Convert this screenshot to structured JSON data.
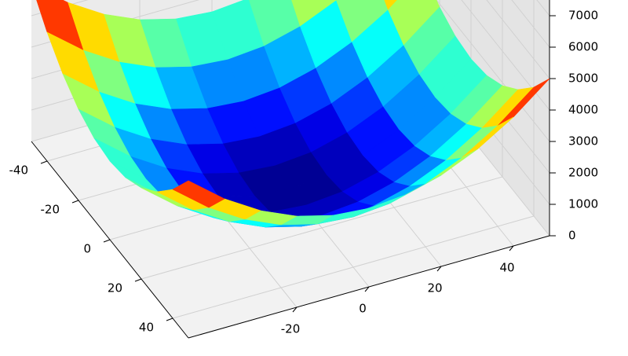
{
  "chart_data": {
    "type": "surface",
    "x": [
      -50,
      -40,
      -30,
      -20,
      -10,
      0,
      10,
      20,
      30,
      40,
      50
    ],
    "y": [
      -50,
      -40,
      -30,
      -20,
      -10,
      0,
      10,
      20,
      30,
      40,
      50
    ],
    "z": [
      [
        5000,
        4100,
        3400,
        2900,
        2600,
        2500,
        2600,
        2900,
        3400,
        4100,
        5000
      ],
      [
        4100,
        3200,
        2500,
        2000,
        1700,
        1600,
        1700,
        2000,
        2500,
        3200,
        4100
      ],
      [
        3400,
        2500,
        1800,
        1300,
        1000,
        900,
        1000,
        1300,
        1800,
        2500,
        3400
      ],
      [
        2900,
        2000,
        1300,
        800,
        500,
        400,
        500,
        800,
        1300,
        2000,
        2900
      ],
      [
        2600,
        1700,
        1000,
        500,
        200,
        100,
        200,
        500,
        1000,
        1700,
        2600
      ],
      [
        2500,
        1600,
        900,
        400,
        100,
        0,
        100,
        400,
        900,
        1600,
        2500
      ],
      [
        2600,
        1700,
        1000,
        500,
        200,
        100,
        200,
        500,
        1000,
        1700,
        2600
      ],
      [
        2900,
        2000,
        1300,
        800,
        500,
        400,
        500,
        800,
        1300,
        2000,
        2900
      ],
      [
        3400,
        2500,
        1800,
        1300,
        1000,
        900,
        1000,
        1300,
        1800,
        2500,
        3400
      ],
      [
        4100,
        3200,
        2500,
        2000,
        1700,
        1600,
        1700,
        2000,
        2500,
        3200,
        4100
      ],
      [
        5000,
        4100,
        3400,
        2900,
        2600,
        2500,
        2600,
        2900,
        3400,
        4100,
        5000
      ]
    ],
    "colormap": "jet",
    "xlim": [
      -50,
      50
    ],
    "xticks": [
      -20,
      0,
      20,
      40
    ],
    "ylim": [
      -50,
      50
    ],
    "yticks": [
      -40,
      -20,
      0,
      20,
      40
    ],
    "zlim": [
      0,
      7500
    ],
    "zticks": [
      0,
      1000,
      2000,
      3000,
      4000,
      5000,
      6000,
      7000
    ],
    "grid": true
  }
}
